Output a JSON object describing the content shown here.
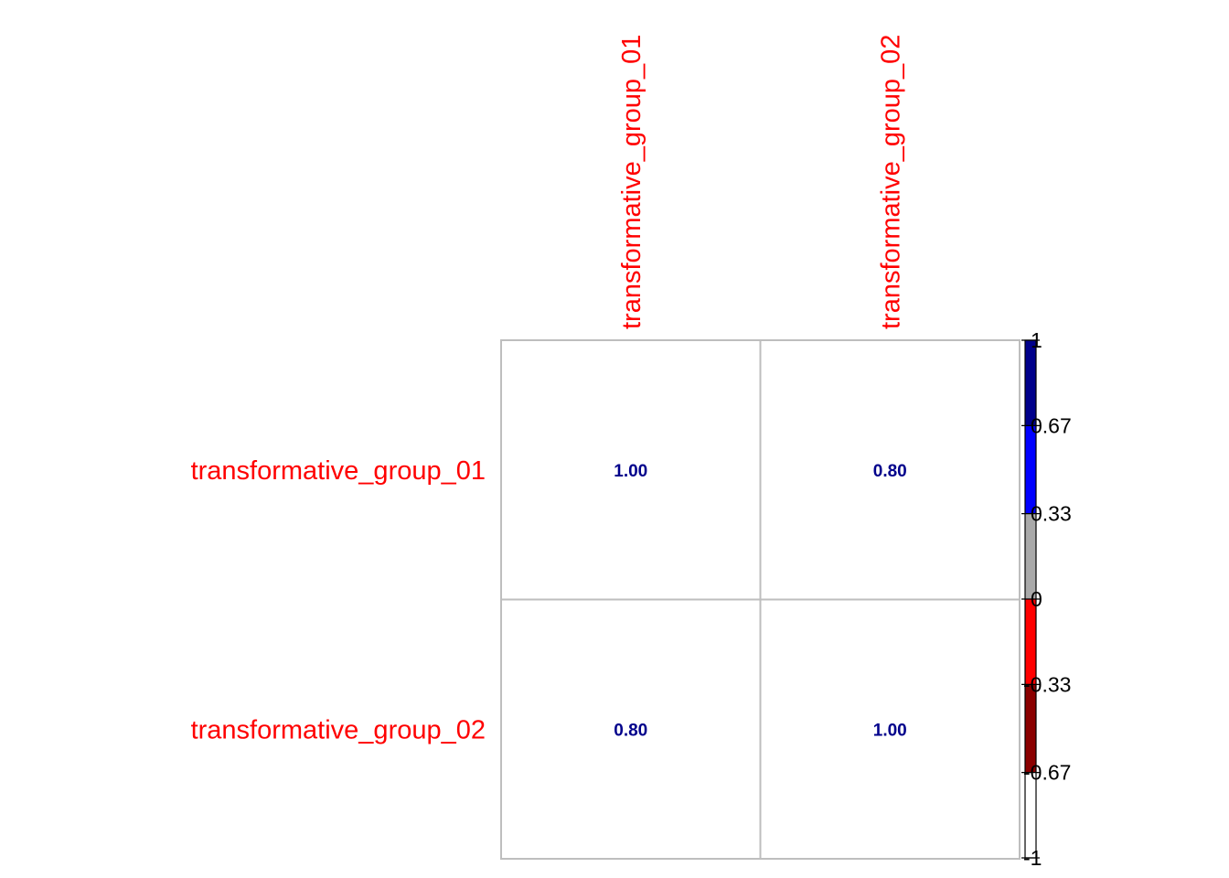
{
  "chart_data": {
    "type": "heatmap",
    "title": "",
    "row_labels": [
      "transformative_group_01",
      "transformative_group_02"
    ],
    "col_labels": [
      "transformative_group_01",
      "transformative_group_02"
    ],
    "values": [
      [
        1.0,
        0.8
      ],
      [
        0.8,
        1.0
      ]
    ],
    "value_labels": [
      [
        "1.00",
        "0.80"
      ],
      [
        "0.80",
        "1.00"
      ]
    ],
    "colorbar": {
      "range": [
        -1,
        1
      ],
      "ticks": [
        1,
        0.67,
        0.33,
        0,
        -0.33,
        -0.67,
        -1
      ],
      "tick_labels": [
        "1",
        "0.67",
        "0.33",
        "0",
        "-0.33",
        "-0.67",
        "-1"
      ],
      "bands": [
        {
          "from": 0.67,
          "to": 1,
          "color": "#00008b"
        },
        {
          "from": 0.33,
          "to": 0.67,
          "color": "#0000ff"
        },
        {
          "from": 0,
          "to": 0.33,
          "color": "#a9a9a9"
        },
        {
          "from": -0.33,
          "to": 0,
          "color": "#ff0000"
        },
        {
          "from": -0.67,
          "to": -0.33,
          "color": "#8b0000"
        },
        {
          "from": -1,
          "to": -0.67,
          "color": "#ffffff"
        }
      ]
    },
    "label_color": "#ff0000",
    "value_color": "#00008b",
    "grid_color": "#bebebe"
  }
}
